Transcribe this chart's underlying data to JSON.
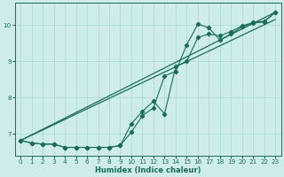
{
  "xlabel": "Humidex (Indice chaleur)",
  "background_color": "#ceecea",
  "grid_color": "#a8d8d4",
  "line_color": "#1a6b5a",
  "xlim": [
    -0.5,
    23.5
  ],
  "ylim": [
    6.4,
    10.6
  ],
  "yticks": [
    7,
    8,
    9,
    10
  ],
  "xticks": [
    0,
    1,
    2,
    3,
    4,
    5,
    6,
    7,
    8,
    9,
    10,
    11,
    12,
    13,
    14,
    15,
    16,
    17,
    18,
    19,
    20,
    21,
    22,
    23
  ],
  "straight_line1": [
    [
      0,
      23
    ],
    [
      6.82,
      10.35
    ]
  ],
  "straight_line2": [
    [
      0,
      23
    ],
    [
      6.82,
      10.15
    ]
  ],
  "jagged1_x": [
    0,
    1,
    2,
    3,
    4,
    5,
    6,
    7,
    8,
    9,
    10,
    11,
    12,
    13,
    14,
    15,
    16,
    17,
    18,
    19,
    20,
    21,
    22,
    23
  ],
  "jagged1_y": [
    6.82,
    6.75,
    6.72,
    6.72,
    6.63,
    6.63,
    6.63,
    6.63,
    6.63,
    6.68,
    7.05,
    7.5,
    7.72,
    8.6,
    8.72,
    9.45,
    10.02,
    9.92,
    9.58,
    9.75,
    9.95,
    10.05,
    10.08,
    10.35
  ],
  "jagged2_x": [
    0,
    1,
    2,
    3,
    4,
    5,
    6,
    7,
    8,
    9,
    10,
    11,
    12,
    13,
    14,
    15,
    16,
    17,
    18,
    19,
    20,
    21,
    22,
    23
  ],
  "jagged2_y": [
    6.82,
    6.75,
    6.72,
    6.72,
    6.63,
    6.63,
    6.63,
    6.63,
    6.63,
    6.68,
    7.28,
    7.62,
    7.9,
    7.55,
    8.85,
    9.0,
    9.65,
    9.75,
    9.7,
    9.82,
    9.97,
    10.07,
    10.1,
    10.35
  ]
}
